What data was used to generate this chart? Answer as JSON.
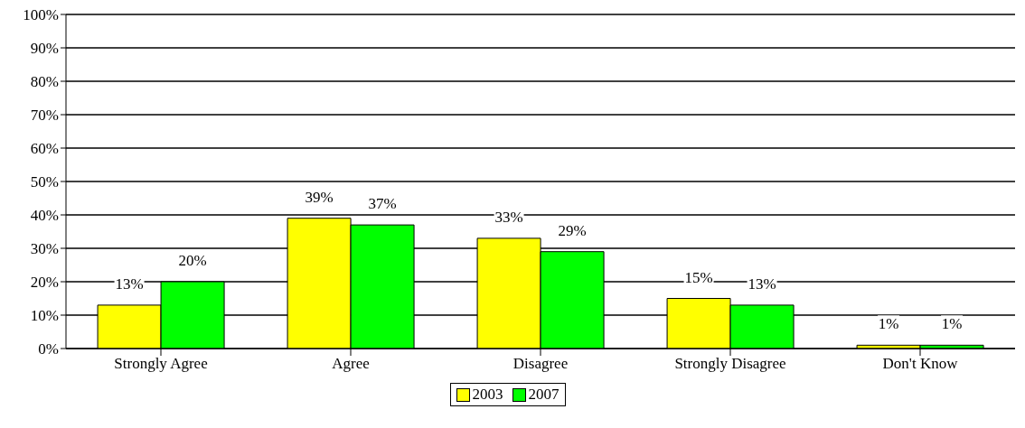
{
  "chart_data": {
    "type": "bar",
    "categories": [
      "Strongly Agree",
      "Agree",
      "Disagree",
      "Strongly Disagree",
      "Don't Know"
    ],
    "series": [
      {
        "name": "2003",
        "color": "#ffff00",
        "values": [
          13,
          39,
          33,
          15,
          1
        ],
        "value_labels": [
          "13%",
          "39%",
          "33%",
          "15%",
          "1%"
        ]
      },
      {
        "name": "2007",
        "color": "#00ff00",
        "values": [
          20,
          37,
          29,
          13,
          1
        ],
        "value_labels": [
          "20%",
          "37%",
          "29%",
          "13%",
          "1%"
        ]
      }
    ],
    "ylim": [
      0,
      100
    ],
    "yticks": [
      {
        "value": 0,
        "label": "0%"
      },
      {
        "value": 10,
        "label": "10%"
      },
      {
        "value": 20,
        "label": "20%"
      },
      {
        "value": 30,
        "label": "30%"
      },
      {
        "value": 40,
        "label": "40%"
      },
      {
        "value": 50,
        "label": "50%"
      },
      {
        "value": 60,
        "label": "60%"
      },
      {
        "value": 70,
        "label": "70%"
      },
      {
        "value": 80,
        "label": "80%"
      },
      {
        "value": 90,
        "label": "90%"
      },
      {
        "value": 100,
        "label": "100%"
      }
    ],
    "grid": "y",
    "legend": "bottom"
  }
}
